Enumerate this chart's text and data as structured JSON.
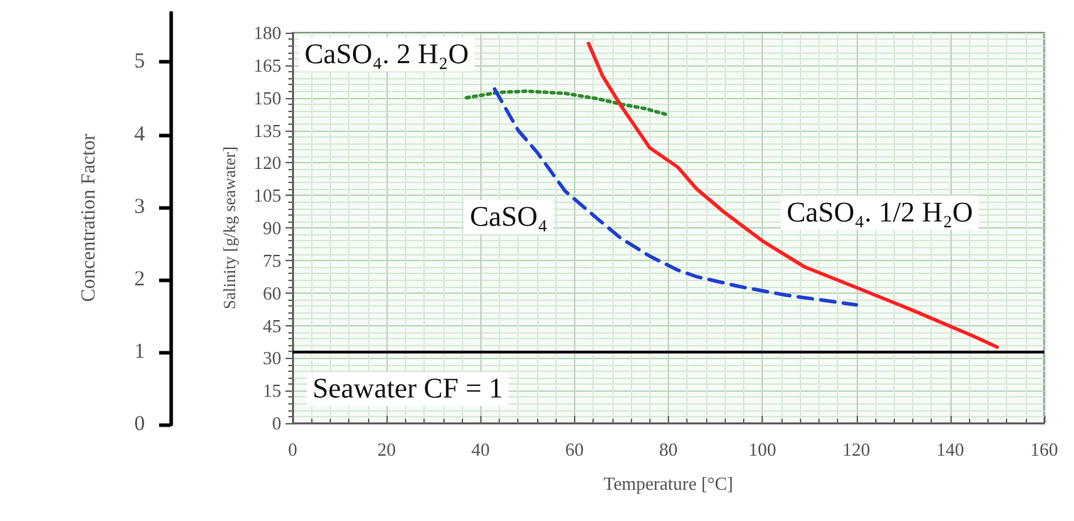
{
  "chart_data": {
    "type": "line",
    "xlabel": "Temperature [°C]",
    "ylabel": "Salinity [g/kg seawater]",
    "y2label": "Concentration Factor",
    "xlim": [
      0,
      160
    ],
    "xticks": [
      0,
      20,
      40,
      60,
      80,
      100,
      120,
      140,
      160
    ],
    "ylim": [
      0,
      180
    ],
    "yticks": [
      0,
      15,
      30,
      45,
      60,
      75,
      90,
      105,
      120,
      135,
      150,
      165,
      180
    ],
    "y2lim": [
      0,
      5.7
    ],
    "y2ticks": [
      0,
      1,
      2,
      3,
      4,
      5
    ],
    "grid": true,
    "marker": "none",
    "series": [
      {
        "name": "CaSO₄. 2 H₂O",
        "color": "#2e8b2e",
        "line_style": "dotted",
        "x": [
          37,
          44,
          50,
          58,
          65,
          70,
          75,
          80
        ],
        "values": [
          150,
          152.5,
          153,
          152,
          149.5,
          147,
          145,
          142
        ]
      },
      {
        "name": "CaSO₄",
        "color": "#1f3fd0",
        "line_style": "dashed",
        "x": [
          43,
          48,
          52,
          58,
          65,
          70,
          76,
          82,
          86,
          95,
          105,
          120
        ],
        "values": [
          154,
          135,
          125,
          107,
          94,
          85,
          77,
          70.5,
          67.5,
          63,
          59,
          54.5
        ]
      },
      {
        "name": "CaSO₄. 1/2 H₂O",
        "color": "#ff2020",
        "line_style": "solid",
        "x": [
          63,
          66,
          70,
          76,
          82,
          86,
          92,
          100,
          109,
          120,
          132,
          145,
          150
        ],
        "values": [
          175,
          160,
          146,
          127,
          118,
          108,
          97,
          84,
          72,
          62.5,
          52,
          40,
          35
        ]
      }
    ],
    "ref_lines": [
      {
        "axis": "y2",
        "value": 1,
        "label": "Seawater CF = 1",
        "color": "#000000"
      }
    ]
  }
}
